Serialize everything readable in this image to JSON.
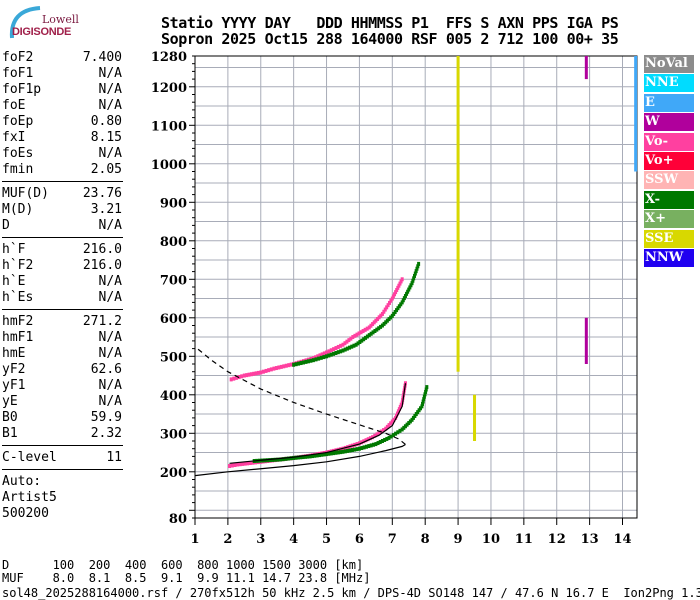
{
  "logo": {
    "line1": "Lowell",
    "line2": "DIGISONDE"
  },
  "header": {
    "row1": "Statio YYYY DAY   DDD HHMMSS P1  FFS S AXN PPS IGA PS",
    "row2": "Sopron 2025 Oct15 288 164000 RSF 005 2 712 100 00+ 35"
  },
  "params": [
    {
      "k": "foF2",
      "v": "7.400"
    },
    {
      "k": "foF1",
      "v": "N/A"
    },
    {
      "k": "foF1p",
      "v": "N/A"
    },
    {
      "k": "foE",
      "v": "N/A"
    },
    {
      "k": "foEp",
      "v": "0.80"
    },
    {
      "k": "fxI",
      "v": "8.15"
    },
    {
      "k": "foEs",
      "v": "N/A"
    },
    {
      "k": "fmin",
      "v": "2.05"
    },
    {
      "k": "MUF(D)",
      "v": "23.76"
    },
    {
      "k": "M(D)",
      "v": "3.21"
    },
    {
      "k": "D",
      "v": "N/A"
    },
    {
      "k": "h`F",
      "v": "216.0"
    },
    {
      "k": "h`F2",
      "v": "216.0"
    },
    {
      "k": "h`E",
      "v": "N/A"
    },
    {
      "k": "h`Es",
      "v": "N/A"
    },
    {
      "k": "hmF2",
      "v": "271.2"
    },
    {
      "k": "hmF1",
      "v": "N/A"
    },
    {
      "k": "hmE",
      "v": "N/A"
    },
    {
      "k": "yF2",
      "v": "62.6"
    },
    {
      "k": "yF1",
      "v": "N/A"
    },
    {
      "k": "yE",
      "v": "N/A"
    },
    {
      "k": "B0",
      "v": "59.9"
    },
    {
      "k": "B1",
      "v": "2.32"
    },
    {
      "k": "C-level",
      "v": "11"
    }
  ],
  "autoscaler": [
    "Auto:",
    "Artist5",
    "500200"
  ],
  "legend": [
    {
      "label": "NoVal",
      "color": "#8c8c8c"
    },
    {
      "label": "NNE",
      "color": "#00dcff"
    },
    {
      "label": "E",
      "color": "#40a8f8"
    },
    {
      "label": "W",
      "color": "#b0009c"
    },
    {
      "label": "Vo-",
      "color": "#ff40a0"
    },
    {
      "label": "Vo+",
      "color": "#ff0038"
    },
    {
      "label": "SSW",
      "color": "#ffb4b4"
    },
    {
      "label": "X-",
      "color": "#007800"
    },
    {
      "label": "X+",
      "color": "#78b060"
    },
    {
      "label": "SSE",
      "color": "#d8d800"
    },
    {
      "label": "NNW",
      "color": "#2000f0"
    }
  ],
  "footer": {
    "d_row": "D      100  200  400  600  800 1000 1500 3000 [km]",
    "muf_row": "MUF    8.0  8.1  8.5  9.1  9.9 11.1 14.7 23.8 [MHz]",
    "file_line": "sol48_2025288164000.rsf / 270fx512h 50 kHz 2.5 km / DPS-4D SO148 147 / 47.6 N 16.7 E  Ion2Png 1.3.20"
  },
  "chart_data": {
    "type": "scatter",
    "xlim": [
      1,
      14.45
    ],
    "ylim": [
      80,
      1280
    ],
    "x_ticks": [
      "1",
      "2",
      "3",
      "4",
      "5",
      "6",
      "7",
      "8",
      "9",
      "10",
      "11",
      "12",
      "13",
      "14"
    ],
    "y_ticks": [
      "80",
      "200",
      "300",
      "400",
      "500",
      "600",
      "700",
      "800",
      "900",
      "1000",
      "1100",
      "1200",
      "1280"
    ],
    "grid": true,
    "legend_position": "right",
    "series": [
      {
        "name": "Vo-",
        "color": "#ff40a0",
        "points": [
          [
            2.05,
            215
          ],
          [
            2.3,
            219
          ],
          [
            2.6,
            222
          ],
          [
            3,
            226
          ],
          [
            3.5,
            231
          ],
          [
            4,
            236
          ],
          [
            4.5,
            242
          ],
          [
            5,
            250
          ],
          [
            5.5,
            260
          ],
          [
            6,
            274
          ],
          [
            6.4,
            290
          ],
          [
            6.8,
            312
          ],
          [
            7.1,
            340
          ],
          [
            7.3,
            380
          ],
          [
            7.4,
            430
          ]
        ]
      },
      {
        "name": "X-",
        "color": "#007800",
        "points": [
          [
            2.8,
            228
          ],
          [
            3.2,
            230
          ],
          [
            3.6,
            232
          ],
          [
            4,
            236
          ],
          [
            4.5,
            240
          ],
          [
            5,
            246
          ],
          [
            5.5,
            252
          ],
          [
            6,
            260
          ],
          [
            6.5,
            272
          ],
          [
            6.9,
            288
          ],
          [
            7.3,
            310
          ],
          [
            7.6,
            335
          ],
          [
            7.9,
            370
          ],
          [
            8.05,
            420
          ]
        ]
      },
      {
        "name": "Vo-",
        "color": "#ff40a0",
        "points": [
          [
            2.1,
            440
          ],
          [
            2.5,
            450
          ],
          [
            3,
            458
          ],
          [
            3.4,
            468
          ],
          [
            4,
            480
          ],
          [
            4.6,
            495
          ],
          [
            5,
            510
          ],
          [
            5.5,
            530
          ],
          [
            5.8,
            550
          ],
          [
            6.3,
            575
          ],
          [
            6.7,
            610
          ],
          [
            7,
            650
          ],
          [
            7.3,
            700
          ]
        ]
      },
      {
        "name": "X-",
        "color": "#007800",
        "points": [
          [
            4,
            478
          ],
          [
            4.6,
            490
          ],
          [
            5,
            500
          ],
          [
            5.5,
            515
          ],
          [
            5.9,
            530
          ],
          [
            6.3,
            555
          ],
          [
            6.7,
            580
          ],
          [
            7,
            605
          ],
          [
            7.3,
            640
          ],
          [
            7.6,
            690
          ],
          [
            7.8,
            740
          ]
        ]
      },
      {
        "name": "SSE",
        "color": "#d8d800",
        "points": [
          [
            9.0,
            460
          ],
          [
            9.0,
            1280
          ],
          [
            9.5,
            400
          ],
          [
            9.5,
            280
          ]
        ]
      },
      {
        "name": "W",
        "color": "#b0009c",
        "points": [
          [
            12.9,
            480
          ],
          [
            12.9,
            600
          ],
          [
            12.9,
            1220
          ],
          [
            12.9,
            1280
          ]
        ]
      },
      {
        "name": "E",
        "color": "#40a8f8",
        "points": [
          [
            14.4,
            980
          ],
          [
            14.4,
            1280
          ]
        ]
      }
    ],
    "profile_solid": [
      [
        1,
        190
      ],
      [
        2,
        200
      ],
      [
        3,
        208
      ],
      [
        4,
        216
      ],
      [
        5,
        226
      ],
      [
        6,
        240
      ],
      [
        6.8,
        255
      ],
      [
        7.3,
        266
      ],
      [
        7.4,
        271
      ]
    ],
    "profile_dashed": [
      [
        7.4,
        271
      ],
      [
        7.2,
        285
      ],
      [
        6.8,
        300
      ],
      [
        6,
        322
      ],
      [
        5,
        350
      ],
      [
        4,
        380
      ],
      [
        3,
        415
      ],
      [
        2,
        460
      ],
      [
        1.5,
        490
      ],
      [
        1,
        525
      ]
    ],
    "model_trace": [
      [
        2.05,
        222
      ],
      [
        3,
        230
      ],
      [
        4,
        238
      ],
      [
        5,
        250
      ],
      [
        6,
        272
      ],
      [
        6.6,
        295
      ],
      [
        7,
        320
      ],
      [
        7.3,
        370
      ],
      [
        7.4,
        430
      ]
    ]
  }
}
